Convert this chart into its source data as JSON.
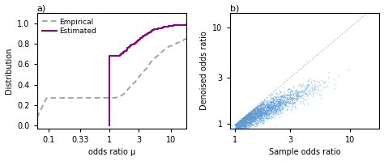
{
  "panel_a": {
    "title": "a)",
    "xlabel": "odds ratio μ",
    "ylabel": "Distribution",
    "xlim": [
      0.065,
      18
    ],
    "ylim": [
      -0.03,
      1.1
    ],
    "xticks": [
      0.1,
      0.33,
      1,
      3,
      10
    ],
    "xtick_labels": [
      "0.1",
      "0.33",
      "1",
      "3",
      "10"
    ],
    "yticks": [
      0.0,
      0.2,
      0.4,
      0.6,
      0.8,
      1.0
    ],
    "estimated_color": "#8B008B",
    "empirical_color": "#999999",
    "legend_labels": [
      "Estimated",
      "Empirical"
    ]
  },
  "panel_b": {
    "title": "b)",
    "xlabel": "Sample odds ratio",
    "ylabel": "Denoised odds ratio",
    "xlim": [
      0.9,
      18
    ],
    "ylim": [
      0.9,
      14
    ],
    "xticks": [
      1,
      3,
      10
    ],
    "xtick_labels": [
      "1",
      "3",
      "10"
    ],
    "yticks": [
      1,
      3,
      10
    ],
    "ytick_labels": [
      "1",
      "3",
      "10"
    ],
    "scatter_color": "#5b9bd5",
    "dotted_line_color": "#bbbbbb"
  },
  "background_color": "#ffffff",
  "seed": 42
}
